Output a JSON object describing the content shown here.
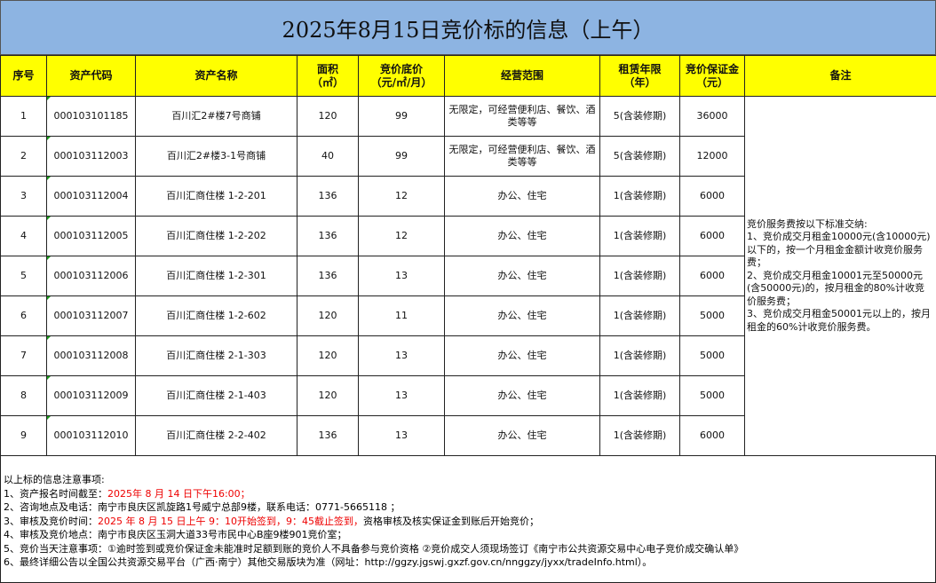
{
  "title": "2025年8月15日竞价标的信息（上午）",
  "headers": {
    "no": "序号",
    "code": "资产代码",
    "name": "资产名称",
    "area": "面积",
    "area_unit": "（㎡）",
    "price": "竞价底价",
    "price_unit": "（元/㎡/月）",
    "scope": "经营范围",
    "term": "租赁年限",
    "term_unit": "（年）",
    "deposit": "竞价保证金",
    "deposit_unit": "（元）",
    "remark": "备注"
  },
  "rows": [
    {
      "no": "1",
      "code": "000103101185",
      "name": "百川汇2#楼7号商铺",
      "area": "120",
      "price": "99",
      "scope": "无限定，可经营便利店、餐饮、酒类等等",
      "term": "5(含装修期)",
      "deposit": "36000"
    },
    {
      "no": "2",
      "code": "000103112003",
      "name": "百川汇2#楼3-1号商铺",
      "area": "40",
      "price": "99",
      "scope": "无限定，可经营便利店、餐饮、酒类等等",
      "term": "5(含装修期)",
      "deposit": "12000"
    },
    {
      "no": "3",
      "code": "000103112004",
      "name": "百川汇商住楼 1-2-201",
      "area": "136",
      "price": "12",
      "scope": "办公、住宅",
      "term": "1(含装修期)",
      "deposit": "6000"
    },
    {
      "no": "4",
      "code": "000103112005",
      "name": "百川汇商住楼 1-2-202",
      "area": "136",
      "price": "12",
      "scope": "办公、住宅",
      "term": "1(含装修期)",
      "deposit": "6000"
    },
    {
      "no": "5",
      "code": "000103112006",
      "name": "百川汇商住楼 1-2-301",
      "area": "136",
      "price": "13",
      "scope": "办公、住宅",
      "term": "1(含装修期)",
      "deposit": "6000"
    },
    {
      "no": "6",
      "code": "000103112007",
      "name": "百川汇商住楼 1-2-602",
      "area": "120",
      "price": "11",
      "scope": "办公、住宅",
      "term": "1(含装修期)",
      "deposit": "5000"
    },
    {
      "no": "7",
      "code": "000103112008",
      "name": "百川汇商住楼 2-1-303",
      "area": "120",
      "price": "13",
      "scope": "办公、住宅",
      "term": "1(含装修期)",
      "deposit": "5000"
    },
    {
      "no": "8",
      "code": "000103112009",
      "name": "百川汇商住楼 2-1-403",
      "area": "120",
      "price": "13",
      "scope": "办公、住宅",
      "term": "1(含装修期)",
      "deposit": "5000"
    },
    {
      "no": "9",
      "code": "000103112010",
      "name": "百川汇商住楼 2-2-402",
      "area": "136",
      "price": "13",
      "scope": "办公、住宅",
      "term": "1(含装修期)",
      "deposit": "6000"
    }
  ],
  "remark": [
    "竞价服务费按以下标准交纳:",
    "1、竞价成交月租金10000元(含10000元)以下的，按一个月租金金额计收竞价服务费；",
    "2、竞价成交月租金10001元至50000元(含50000元)的，按月租金的80%计收竞价服务费；",
    "3、竞价成交月租金50001元以上的，按月租金的60%计收竞价服务费。"
  ],
  "notes": {
    "heading": "以上标的信息注意事项:",
    "n1_label": "1、资产报名时间截至：",
    "n1_red": "2025年 8 月 14 日下午16:00；",
    "n2": "2、咨询地点及电话：南宁市良庆区凯旋路1号威宁总部9楼，联系电话：0771-5665118 ；",
    "n3_label": "3、审核及竞价时间：",
    "n3_red": "2025 年 8 月 15 日上午 9：10开始签到，9：45截止签到，",
    "n3_rest": "资格审核及核实保证金到账后开始竞价；",
    "n4": "4、审核及竞价地点：南宁市良庆区玉洞大道33号市民中心B座9楼901竞价室；",
    "n5": "5、竞价当天注意事项：①逾时签到或竞价保证金未能准时足额到账的竞价人不具备参与竞价资格 ②竞价成交人须现场签订《南宁市公共资源交易中心电子竞价成交确认单》",
    "n6": "6、最终详细公告以全国公共资源交易平台（广西·南宁）其他交易版块为准（网址：http://ggzy.jgswj.gxzf.gov.cn/nnggzy/jyxx/tradeInfo.html）。"
  },
  "colors": {
    "title_bg": "#8db4e2",
    "header_bg": "#ffff00",
    "highlight": "#ee0000"
  }
}
